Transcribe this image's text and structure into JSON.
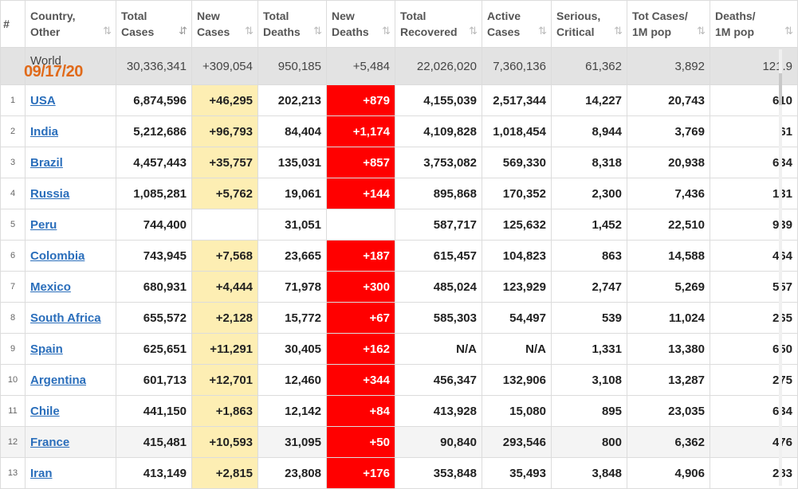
{
  "header": {
    "columns": [
      {
        "line1": "#",
        "line2": "",
        "sort": ""
      },
      {
        "line1": "Country,",
        "line2": "Other",
        "sort": "⇅"
      },
      {
        "line1": "Total",
        "line2": "Cases",
        "sort": "⇵"
      },
      {
        "line1": "New",
        "line2": "Cases",
        "sort": "⇅"
      },
      {
        "line1": "Total",
        "line2": "Deaths",
        "sort": "⇅"
      },
      {
        "line1": "New",
        "line2": "Deaths",
        "sort": "⇅"
      },
      {
        "line1": "Total",
        "line2": "Recovered",
        "sort": "⇅"
      },
      {
        "line1": "Active",
        "line2": "Cases",
        "sort": "⇅"
      },
      {
        "line1": "Serious,",
        "line2": "Critical",
        "sort": "⇅"
      },
      {
        "line1": "Tot Cases/",
        "line2": "1M pop",
        "sort": "⇅"
      },
      {
        "line1": "Deaths/",
        "line2": "1M pop",
        "sort": "⇅"
      }
    ]
  },
  "world": {
    "name": "World",
    "date_overlay": "09/17/20",
    "total_cases": "30,336,341",
    "new_cases": "+309,054",
    "total_deaths": "950,185",
    "new_deaths": "+5,484",
    "total_recovered": "22,026,020",
    "active_cases": "7,360,136",
    "serious_critical": "61,362",
    "cases_per_1m": "3,892",
    "deaths_per_1m": "121.9"
  },
  "rows": [
    {
      "num": "1",
      "country": "USA",
      "total_cases": "6,874,596",
      "new_cases": "+46,295",
      "total_deaths": "202,213",
      "new_deaths": "+879",
      "total_recovered": "4,155,039",
      "active_cases": "2,517,344",
      "serious_critical": "14,227",
      "cases_per_1m": "20,743",
      "deaths_per_1m": "610"
    },
    {
      "num": "2",
      "country": "India",
      "total_cases": "5,212,686",
      "new_cases": "+96,793",
      "total_deaths": "84,404",
      "new_deaths": "+1,174",
      "total_recovered": "4,109,828",
      "active_cases": "1,018,454",
      "serious_critical": "8,944",
      "cases_per_1m": "3,769",
      "deaths_per_1m": "61"
    },
    {
      "num": "3",
      "country": "Brazil",
      "total_cases": "4,457,443",
      "new_cases": "+35,757",
      "total_deaths": "135,031",
      "new_deaths": "+857",
      "total_recovered": "3,753,082",
      "active_cases": "569,330",
      "serious_critical": "8,318",
      "cases_per_1m": "20,938",
      "deaths_per_1m": "634"
    },
    {
      "num": "4",
      "country": "Russia",
      "total_cases": "1,085,281",
      "new_cases": "+5,762",
      "total_deaths": "19,061",
      "new_deaths": "+144",
      "total_recovered": "895,868",
      "active_cases": "170,352",
      "serious_critical": "2,300",
      "cases_per_1m": "7,436",
      "deaths_per_1m": "131"
    },
    {
      "num": "5",
      "country": "Peru",
      "total_cases": "744,400",
      "new_cases": "",
      "total_deaths": "31,051",
      "new_deaths": "",
      "total_recovered": "587,717",
      "active_cases": "125,632",
      "serious_critical": "1,452",
      "cases_per_1m": "22,510",
      "deaths_per_1m": "939"
    },
    {
      "num": "6",
      "country": "Colombia",
      "total_cases": "743,945",
      "new_cases": "+7,568",
      "total_deaths": "23,665",
      "new_deaths": "+187",
      "total_recovered": "615,457",
      "active_cases": "104,823",
      "serious_critical": "863",
      "cases_per_1m": "14,588",
      "deaths_per_1m": "464"
    },
    {
      "num": "7",
      "country": "Mexico",
      "total_cases": "680,931",
      "new_cases": "+4,444",
      "total_deaths": "71,978",
      "new_deaths": "+300",
      "total_recovered": "485,024",
      "active_cases": "123,929",
      "serious_critical": "2,747",
      "cases_per_1m": "5,269",
      "deaths_per_1m": "557"
    },
    {
      "num": "8",
      "country": "South Africa",
      "total_cases": "655,572",
      "new_cases": "+2,128",
      "total_deaths": "15,772",
      "new_deaths": "+67",
      "total_recovered": "585,303",
      "active_cases": "54,497",
      "serious_critical": "539",
      "cases_per_1m": "11,024",
      "deaths_per_1m": "265"
    },
    {
      "num": "9",
      "country": "Spain",
      "total_cases": "625,651",
      "new_cases": "+11,291",
      "total_deaths": "30,405",
      "new_deaths": "+162",
      "total_recovered": "N/A",
      "active_cases": "N/A",
      "serious_critical": "1,331",
      "cases_per_1m": "13,380",
      "deaths_per_1m": "650"
    },
    {
      "num": "10",
      "country": "Argentina",
      "total_cases": "601,713",
      "new_cases": "+12,701",
      "total_deaths": "12,460",
      "new_deaths": "+344",
      "total_recovered": "456,347",
      "active_cases": "132,906",
      "serious_critical": "3,108",
      "cases_per_1m": "13,287",
      "deaths_per_1m": "275"
    },
    {
      "num": "11",
      "country": "Chile",
      "total_cases": "441,150",
      "new_cases": "+1,863",
      "total_deaths": "12,142",
      "new_deaths": "+84",
      "total_recovered": "413,928",
      "active_cases": "15,080",
      "serious_critical": "895",
      "cases_per_1m": "23,035",
      "deaths_per_1m": "634"
    },
    {
      "num": "12",
      "country": "France",
      "total_cases": "415,481",
      "new_cases": "+10,593",
      "total_deaths": "31,095",
      "new_deaths": "+50",
      "total_recovered": "90,840",
      "active_cases": "293,546",
      "serious_critical": "800",
      "cases_per_1m": "6,362",
      "deaths_per_1m": "476",
      "alt": true
    },
    {
      "num": "13",
      "country": "Iran",
      "total_cases": "413,149",
      "new_cases": "+2,815",
      "total_deaths": "23,808",
      "new_deaths": "+176",
      "total_recovered": "353,848",
      "active_cases": "35,493",
      "serious_critical": "3,848",
      "cases_per_1m": "4,906",
      "deaths_per_1m": "283"
    }
  ],
  "colors": {
    "new_cases_highlight": "#fdeeb3",
    "new_deaths_highlight": "#ff0000",
    "link": "#2a6ebb",
    "date_overlay": "#e06a1a",
    "world_row_bg": "#e3e3e3"
  }
}
